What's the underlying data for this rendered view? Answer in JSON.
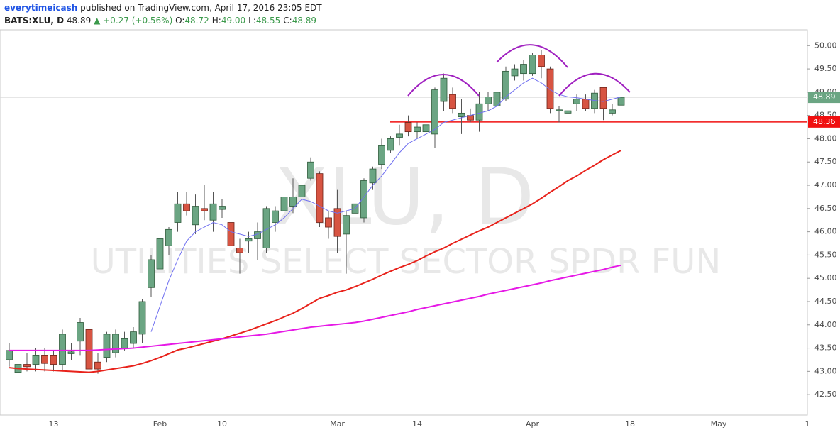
{
  "header": {
    "author": "everytimeicash",
    "published": "published on TradingView.com, April 17, 2016 23:05 EDT",
    "symbol": "BATS:XLU, D",
    "last": "48.89",
    "change": "+0.27 (+0.56%)",
    "ohlc": [
      {
        "label": "O:",
        "value": "48.72"
      },
      {
        "label": "H:",
        "value": "49.00"
      },
      {
        "label": "L:",
        "value": "48.55"
      },
      {
        "label": "C:",
        "value": "48.89"
      }
    ]
  },
  "chart_data": {
    "type": "candlestick",
    "title": "XLU, D",
    "subtitle": "UTILITIES SELECT SECTOR SPDR FUN",
    "categories": [
      null,
      null,
      null,
      null,
      null,
      "13",
      null,
      null,
      null,
      null,
      null,
      null,
      null,
      null,
      null,
      null,
      null,
      "Feb",
      null,
      null,
      null,
      null,
      null,
      null,
      "10",
      null,
      null,
      null,
      null,
      null,
      null,
      null,
      null,
      null,
      null,
      null,
      null,
      "Mar",
      null,
      null,
      null,
      null,
      null,
      null,
      null,
      null,
      "14",
      null,
      null,
      null,
      null,
      null,
      null,
      null,
      null,
      null,
      null,
      null,
      null,
      "Apr",
      null,
      null,
      null,
      null,
      null,
      null,
      null,
      null,
      null,
      null,
      "18",
      null,
      null,
      null,
      null,
      null,
      null,
      null,
      null,
      null,
      "May",
      null,
      null,
      null,
      null,
      null,
      null,
      null,
      null,
      null,
      "1"
    ],
    "open": [
      43.25,
      42.98,
      43.15,
      43.15,
      43.35,
      43.35,
      43.15,
      43.38,
      43.65,
      43.9,
      43.2,
      43.3,
      43.4,
      43.5,
      43.6,
      43.8,
      44.8,
      45.2,
      45.7,
      46.2,
      46.6,
      46.15,
      46.5,
      46.25,
      46.48,
      46.2,
      45.65,
      45.8,
      45.85,
      45.65,
      46.2,
      46.45,
      46.55,
      46.75,
      47.15,
      47.25,
      46.3,
      46.5,
      45.95,
      46.4,
      46.3,
      47.05,
      47.45,
      47.75,
      48.03,
      48.35,
      48.15,
      48.15,
      48.1,
      48.8,
      48.95,
      48.47,
      48.5,
      48.4,
      48.75,
      48.7,
      48.85,
      49.35,
      49.4,
      49.4,
      49.8,
      49.5,
      48.6,
      48.55,
      48.75,
      48.85,
      48.65,
      49.1,
      48.55,
      48.72,
      null,
      null,
      null,
      null,
      null,
      null,
      null,
      null,
      null,
      null,
      null,
      null,
      null,
      null,
      null,
      null,
      null,
      null,
      null,
      null,
      null
    ],
    "high": [
      43.6,
      43.25,
      43.4,
      43.5,
      43.5,
      43.45,
      43.9,
      43.6,
      44.15,
      44.0,
      43.4,
      43.85,
      43.9,
      43.85,
      43.95,
      44.55,
      45.5,
      46.0,
      46.1,
      46.85,
      46.85,
      46.8,
      47.0,
      46.85,
      46.7,
      46.3,
      45.85,
      46.0,
      46.2,
      46.55,
      46.55,
      46.9,
      47.15,
      47.15,
      47.6,
      47.3,
      46.45,
      46.9,
      46.45,
      46.7,
      47.15,
      47.4,
      48.0,
      48.05,
      48.3,
      48.5,
      48.35,
      48.45,
      49.1,
      49.4,
      49.1,
      48.85,
      48.65,
      49.0,
      49.0,
      49.15,
      49.55,
      49.6,
      49.7,
      49.85,
      49.9,
      49.55,
      48.7,
      48.8,
      48.95,
      48.95,
      49.05,
      49.1,
      48.75,
      49.0,
      null,
      null,
      null,
      null,
      null,
      null,
      null,
      null,
      null,
      null,
      null,
      null,
      null,
      null,
      null,
      null,
      null,
      null,
      null,
      null,
      null
    ],
    "low": [
      43.1,
      42.9,
      43.0,
      43.0,
      43.0,
      43.0,
      43.0,
      43.25,
      43.35,
      42.55,
      42.95,
      43.2,
      43.3,
      43.45,
      43.5,
      43.6,
      44.6,
      45.1,
      45.5,
      46.0,
      46.35,
      45.95,
      46.25,
      46.0,
      46.3,
      45.6,
      45.1,
      45.55,
      45.4,
      45.55,
      46.0,
      46.3,
      46.4,
      46.6,
      47.1,
      46.1,
      45.85,
      45.55,
      45.1,
      46.2,
      46.2,
      46.9,
      47.35,
      47.7,
      47.85,
      48.05,
      48.0,
      48.05,
      47.8,
      48.6,
      48.55,
      48.1,
      48.35,
      48.15,
      48.6,
      48.55,
      48.8,
      49.25,
      49.25,
      49.35,
      49.3,
      48.55,
      48.35,
      48.5,
      48.6,
      48.6,
      48.55,
      48.4,
      48.5,
      48.55,
      null,
      null,
      null,
      null,
      null,
      null,
      null,
      null,
      null,
      null,
      null,
      null,
      null,
      null,
      null,
      null,
      null,
      null,
      null,
      null,
      null
    ],
    "close": [
      43.45,
      43.15,
      43.1,
      43.35,
      43.17,
      43.15,
      43.8,
      43.42,
      44.05,
      43.05,
      43.05,
      43.8,
      43.8,
      43.7,
      43.85,
      44.5,
      45.4,
      45.85,
      46.05,
      46.6,
      46.45,
      46.55,
      46.45,
      46.6,
      46.55,
      45.7,
      45.55,
      45.85,
      46.0,
      46.5,
      46.45,
      46.75,
      46.75,
      47.0,
      47.5,
      46.2,
      46.1,
      45.9,
      46.35,
      46.6,
      47.1,
      47.35,
      47.85,
      48.0,
      48.1,
      48.15,
      48.25,
      48.3,
      49.05,
      49.3,
      48.65,
      48.55,
      48.4,
      48.75,
      48.9,
      49.0,
      49.45,
      49.5,
      49.6,
      49.8,
      49.55,
      48.65,
      48.62,
      48.6,
      48.85,
      48.65,
      48.98,
      48.65,
      48.62,
      48.89,
      null,
      null,
      null,
      null,
      null,
      null,
      null,
      null,
      null,
      null,
      null,
      null,
      null,
      null,
      null,
      null,
      null,
      null,
      null,
      null,
      null
    ],
    "up_color": "#6ba583",
    "down_color": "#d75442",
    "lines": [
      {
        "color": "#6f6ff0",
        "width": 1,
        "values": [
          null,
          null,
          null,
          null,
          null,
          null,
          null,
          null,
          null,
          null,
          null,
          null,
          null,
          null,
          null,
          null,
          43.85,
          44.4,
          44.95,
          45.4,
          45.8,
          46.0,
          46.1,
          46.2,
          46.15,
          46.0,
          45.95,
          45.9,
          45.95,
          46.05,
          46.15,
          46.3,
          46.5,
          46.7,
          46.65,
          46.55,
          46.45,
          46.4,
          46.45,
          46.5,
          46.75,
          47.0,
          47.2,
          47.45,
          47.7,
          47.9,
          48.0,
          48.1,
          48.2,
          48.35,
          48.4,
          48.45,
          48.5,
          48.55,
          48.6,
          48.7,
          48.9,
          49.05,
          49.2,
          49.3,
          49.2,
          49.05,
          48.95,
          48.9,
          48.88,
          48.85,
          48.82,
          48.8,
          48.85,
          48.9,
          null,
          null,
          null,
          null,
          null,
          null,
          null,
          null,
          null,
          null,
          null,
          null,
          null,
          null,
          null,
          null,
          null,
          null,
          null,
          null,
          null
        ]
      },
      {
        "color": "#e8221b",
        "width": 2,
        "values": [
          43.08,
          43.06,
          43.05,
          43.04,
          43.03,
          43.02,
          43.01,
          43.0,
          42.99,
          42.98,
          43.0,
          43.03,
          43.06,
          43.09,
          43.12,
          43.17,
          43.23,
          43.3,
          43.38,
          43.46,
          43.5,
          43.55,
          43.6,
          43.65,
          43.7,
          43.76,
          43.82,
          43.88,
          43.95,
          44.02,
          44.09,
          44.17,
          44.25,
          44.35,
          44.46,
          44.57,
          44.63,
          44.7,
          44.75,
          44.82,
          44.9,
          44.98,
          45.07,
          45.15,
          45.23,
          45.3,
          45.38,
          45.48,
          45.57,
          45.65,
          45.75,
          45.84,
          45.93,
          46.02,
          46.1,
          46.2,
          46.3,
          46.4,
          46.5,
          46.6,
          46.72,
          46.85,
          46.97,
          47.1,
          47.2,
          47.32,
          47.43,
          47.55,
          47.65,
          47.75,
          null,
          null,
          null,
          null,
          null,
          null,
          null,
          null,
          null,
          null,
          null,
          null,
          null,
          null,
          null,
          null,
          null,
          null,
          null,
          null,
          null
        ]
      },
      {
        "color": "#e619e6",
        "width": 2,
        "values": [
          43.45,
          43.45,
          43.45,
          43.45,
          43.45,
          43.45,
          43.45,
          43.45,
          43.45,
          43.45,
          43.46,
          43.47,
          43.48,
          43.49,
          43.5,
          43.52,
          43.54,
          43.56,
          43.58,
          43.6,
          43.62,
          43.64,
          43.66,
          43.68,
          43.7,
          43.72,
          43.74,
          43.76,
          43.78,
          43.8,
          43.83,
          43.86,
          43.89,
          43.92,
          43.95,
          43.97,
          43.99,
          44.01,
          44.03,
          44.05,
          44.08,
          44.12,
          44.16,
          44.2,
          44.24,
          44.28,
          44.33,
          44.37,
          44.41,
          44.45,
          44.49,
          44.53,
          44.57,
          44.61,
          44.66,
          44.7,
          44.74,
          44.78,
          44.82,
          44.86,
          44.9,
          44.95,
          44.99,
          45.03,
          45.07,
          45.11,
          45.15,
          45.19,
          45.24,
          45.28,
          null,
          null,
          null,
          null,
          null,
          null,
          null,
          null,
          null,
          null,
          null,
          null,
          null,
          null,
          null,
          null,
          null,
          null,
          null,
          null,
          null
        ]
      }
    ],
    "price_lines": [
      {
        "value": 48.89,
        "label": "48.89",
        "color": "#6ba583",
        "line_color": "#d8d8d8"
      },
      {
        "value": 48.36,
        "label": "48.36",
        "color": "#f01010",
        "line_color": "#f01010"
      }
    ],
    "ylim": [
      42.06,
      50.34
    ],
    "yticks": [
      {
        "value": 42.5,
        "label": "42.50"
      },
      {
        "value": 43,
        "label": "43.00"
      },
      {
        "value": 43.5,
        "label": "43.50"
      },
      {
        "value": 44,
        "label": "44.00"
      },
      {
        "value": 44.5,
        "label": "44.50"
      },
      {
        "value": 45,
        "label": "45.00"
      },
      {
        "value": 45.5,
        "label": "45.50"
      },
      {
        "value": 46,
        "label": "46.00"
      },
      {
        "value": 46.5,
        "label": "46.50"
      },
      {
        "value": 47,
        "label": "47.00"
      },
      {
        "value": 47.5,
        "label": "47.50"
      },
      {
        "value": 48,
        "label": "48.00"
      },
      {
        "value": 48.5,
        "label": "48.50"
      },
      {
        "value": 49,
        "label": "49.00"
      },
      {
        "value": 49.5,
        "label": "49.50"
      },
      {
        "value": 50,
        "label": "50.00"
      }
    ]
  }
}
